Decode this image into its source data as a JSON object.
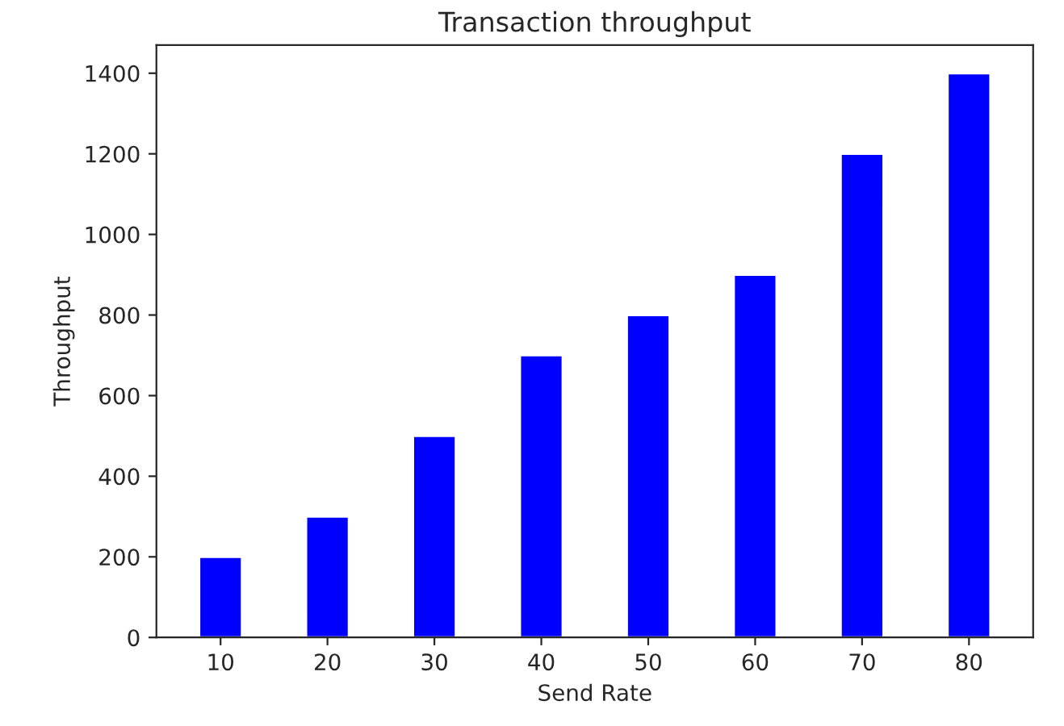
{
  "chart_data": {
    "type": "bar",
    "title": "Transaction throughput",
    "xlabel": "Send Rate",
    "ylabel": "Throughput",
    "categories": [
      "10",
      "20",
      "30",
      "40",
      "50",
      "60",
      "70",
      "80"
    ],
    "values": [
      200,
      300,
      500,
      700,
      800,
      900,
      1200,
      1400
    ],
    "color": "#0000ff",
    "ylim": [
      0,
      1470
    ],
    "yticks": [
      0,
      200,
      400,
      600,
      800,
      1000,
      1200,
      1400
    ],
    "grid": false
  }
}
